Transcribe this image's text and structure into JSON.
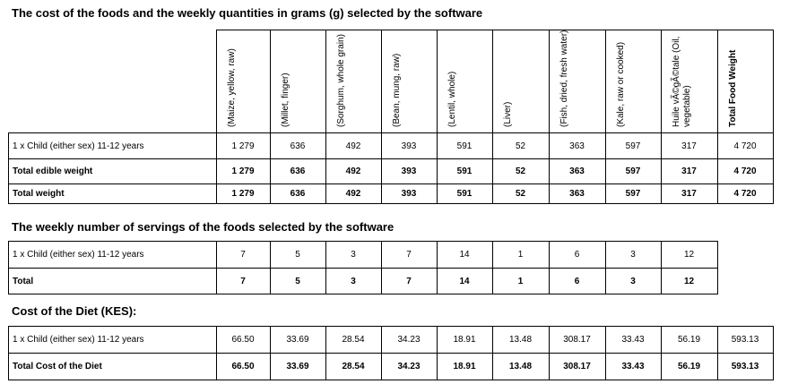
{
  "section1": {
    "title": "The cost of the foods and the weekly quantities in grams (g) selected by the software",
    "headers": [
      "(Maize, yellow, raw)",
      "(Millet, finger)",
      "(Sorghum, whole grain)",
      "(Bean, mung, raw)",
      "(Lentil, whole)",
      "(Liver)",
      "(Fish, dried, fresh water)",
      "(Kale, raw or cooked)",
      "Huile vÃ©gÃ©tale (Oil, vegetable)",
      "Total Food Weight"
    ],
    "rows": [
      {
        "label": "1 x Child (either sex) 11-12 years",
        "values": [
          "1 279",
          "636",
          "492",
          "393",
          "591",
          "52",
          "363",
          "597",
          "317",
          "4 720"
        ]
      },
      {
        "label": "Total edible weight",
        "values": [
          "1 279",
          "636",
          "492",
          "393",
          "591",
          "52",
          "363",
          "597",
          "317",
          "4 720"
        ]
      },
      {
        "label": "Total weight",
        "values": [
          "1 279",
          "636",
          "492",
          "393",
          "591",
          "52",
          "363",
          "597",
          "317",
          "4 720"
        ]
      }
    ]
  },
  "section2": {
    "title": "The weekly number of servings of the foods selected by the software",
    "rows": [
      {
        "label": "1 x Child (either sex) 11-12 years",
        "values": [
          "7",
          "5",
          "3",
          "7",
          "14",
          "1",
          "6",
          "3",
          "12"
        ]
      },
      {
        "label": "Total",
        "values": [
          "7",
          "5",
          "3",
          "7",
          "14",
          "1",
          "6",
          "3",
          "12"
        ]
      }
    ]
  },
  "section3": {
    "title": "Cost of the Diet (KES):",
    "rows": [
      {
        "label": "1 x Child (either sex) 11-12 years",
        "values": [
          "66.50",
          "33.69",
          "28.54",
          "34.23",
          "18.91",
          "13.48",
          "308.17",
          "33.43",
          "56.19",
          "593.13"
        ]
      },
      {
        "label": "Total Cost of the Diet",
        "values": [
          "66.50",
          "33.69",
          "28.54",
          "34.23",
          "18.91",
          "13.48",
          "308.17",
          "33.43",
          "56.19",
          "593.13"
        ]
      }
    ]
  }
}
